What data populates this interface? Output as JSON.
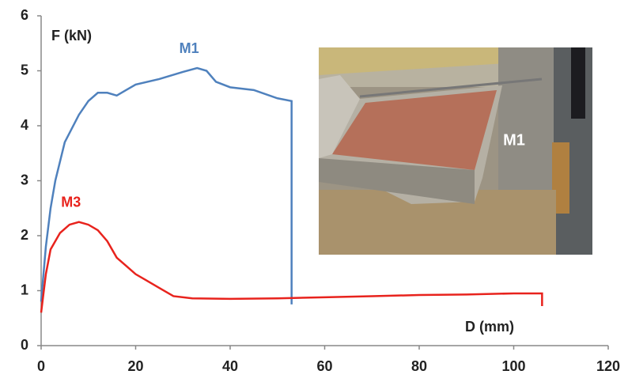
{
  "chart_data": {
    "type": "line",
    "y_label": "F (kN)",
    "x_label": "D (mm)",
    "inset_label": "M1",
    "xlim": [
      0,
      120
    ],
    "ylim": [
      0,
      6
    ],
    "xticks": [
      0,
      20,
      40,
      60,
      80,
      100,
      120
    ],
    "yticks": [
      0,
      1,
      2,
      3,
      4,
      5,
      6
    ],
    "grid": false,
    "series": [
      {
        "name": "M1",
        "color": "#4f81bd",
        "x": [
          0,
          1,
          2,
          3,
          5,
          8,
          10,
          12,
          14,
          16,
          18,
          20,
          25,
          30,
          33,
          35,
          37,
          40,
          45,
          50,
          53,
          53
        ],
        "values": [
          0.8,
          1.8,
          2.5,
          3.0,
          3.7,
          4.2,
          4.45,
          4.6,
          4.6,
          4.55,
          4.65,
          4.75,
          4.85,
          4.98,
          5.05,
          5.0,
          4.8,
          4.7,
          4.65,
          4.5,
          4.45,
          0.75
        ]
      },
      {
        "name": "M3",
        "color": "#e8231d",
        "x": [
          0,
          1,
          2,
          4,
          6,
          8,
          10,
          12,
          14,
          16,
          18,
          20,
          22,
          25,
          28,
          32,
          40,
          50,
          60,
          70,
          80,
          90,
          100,
          106,
          106
        ],
        "values": [
          0.6,
          1.3,
          1.75,
          2.05,
          2.2,
          2.25,
          2.2,
          2.1,
          1.9,
          1.6,
          1.45,
          1.3,
          1.2,
          1.05,
          0.9,
          0.86,
          0.85,
          0.86,
          0.88,
          0.9,
          0.92,
          0.93,
          0.95,
          0.95,
          0.72
        ]
      }
    ]
  }
}
